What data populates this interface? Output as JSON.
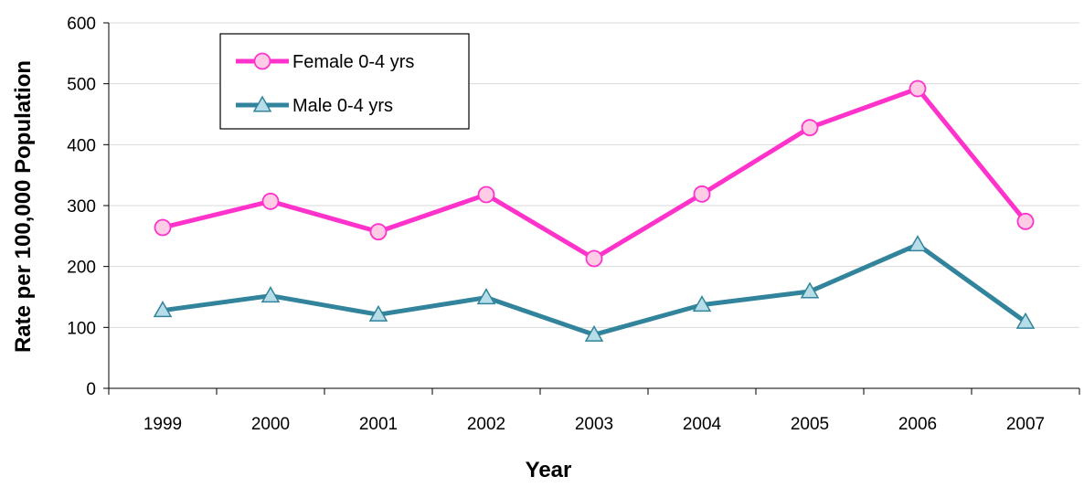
{
  "chart_data": {
    "type": "line",
    "x": [
      "1999",
      "2000",
      "2001",
      "2002",
      "2003",
      "2004",
      "2005",
      "2006",
      "2007"
    ],
    "series": [
      {
        "name": "Female 0-4 yrs",
        "values": [
          264,
          307,
          257,
          318,
          213,
          319,
          428,
          492,
          274
        ],
        "color": "#ff33cc",
        "marker": "circle",
        "marker_fill": "#ffcce6"
      },
      {
        "name": "Male 0-4 yrs",
        "values": [
          128,
          152,
          121,
          149,
          88,
          137,
          159,
          236,
          109
        ],
        "color": "#31849b",
        "marker": "triangle",
        "marker_fill": "#b7dde8"
      }
    ],
    "xlabel": "Year",
    "ylabel": "Rate per 100,000 Population",
    "ylim": [
      0,
      600
    ],
    "yticks": [
      0,
      100,
      200,
      300,
      400,
      500,
      600
    ],
    "grid": "horizontal",
    "legend_position": "top-left"
  }
}
